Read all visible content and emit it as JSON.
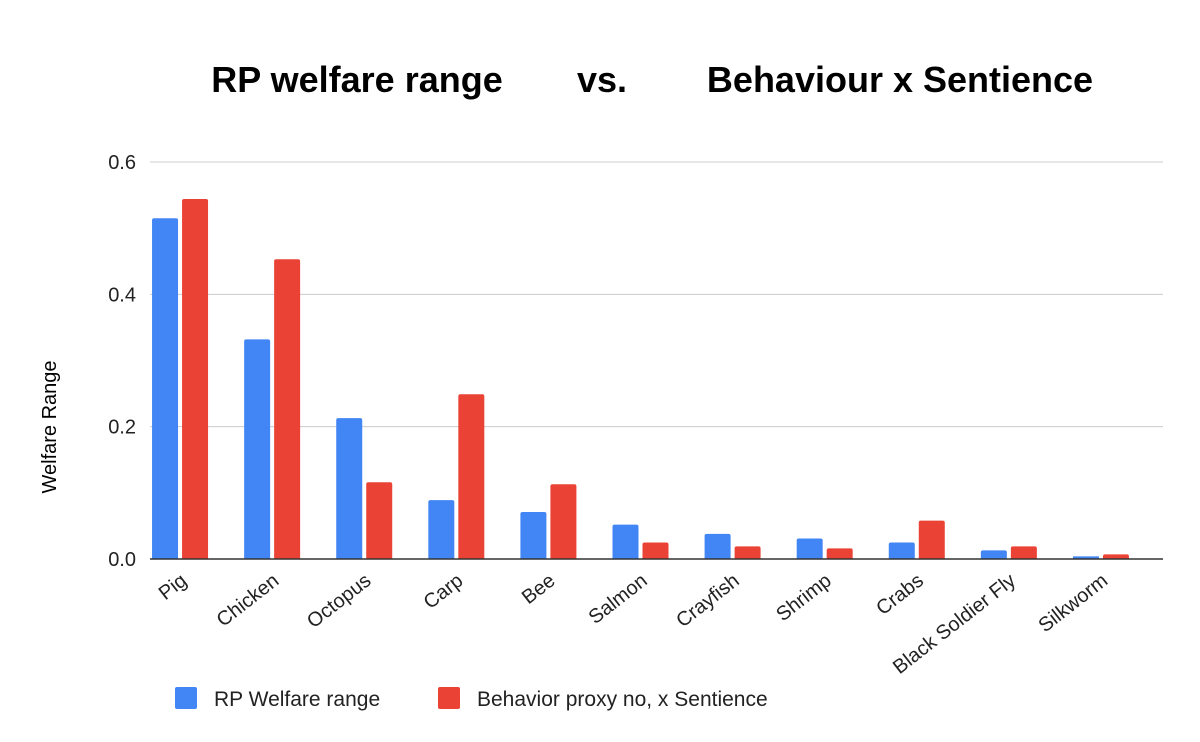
{
  "chart_data": {
    "type": "bar",
    "title_parts": [
      "RP welfare range",
      "vs.",
      "Behaviour x Sentience"
    ],
    "xlabel": "",
    "ylabel": "Welfare Range",
    "ylim": [
      0,
      0.6
    ],
    "yticks": [
      "0.0",
      "0.2",
      "0.4",
      "0.6"
    ],
    "grid": true,
    "legend_position": "bottom-left",
    "categories": [
      "Pig",
      "Chicken",
      "Octopus",
      "Carp",
      "Bee",
      "Salmon",
      "Crayfish",
      "Shrimp",
      "Crabs",
      "Black Soldier Fly",
      "Silkworm"
    ],
    "series": [
      {
        "name": "RP Welfare range",
        "color": "#4285f4",
        "values": [
          0.515,
          0.332,
          0.213,
          0.089,
          0.071,
          0.052,
          0.038,
          0.031,
          0.025,
          0.013,
          0.004
        ]
      },
      {
        "name": "Behavior proxy no, x Sentience",
        "color": "#ea4335",
        "values": [
          0.544,
          0.453,
          0.116,
          0.249,
          0.113,
          0.025,
          0.019,
          0.016,
          0.058,
          0.019,
          0.007
        ]
      }
    ]
  }
}
